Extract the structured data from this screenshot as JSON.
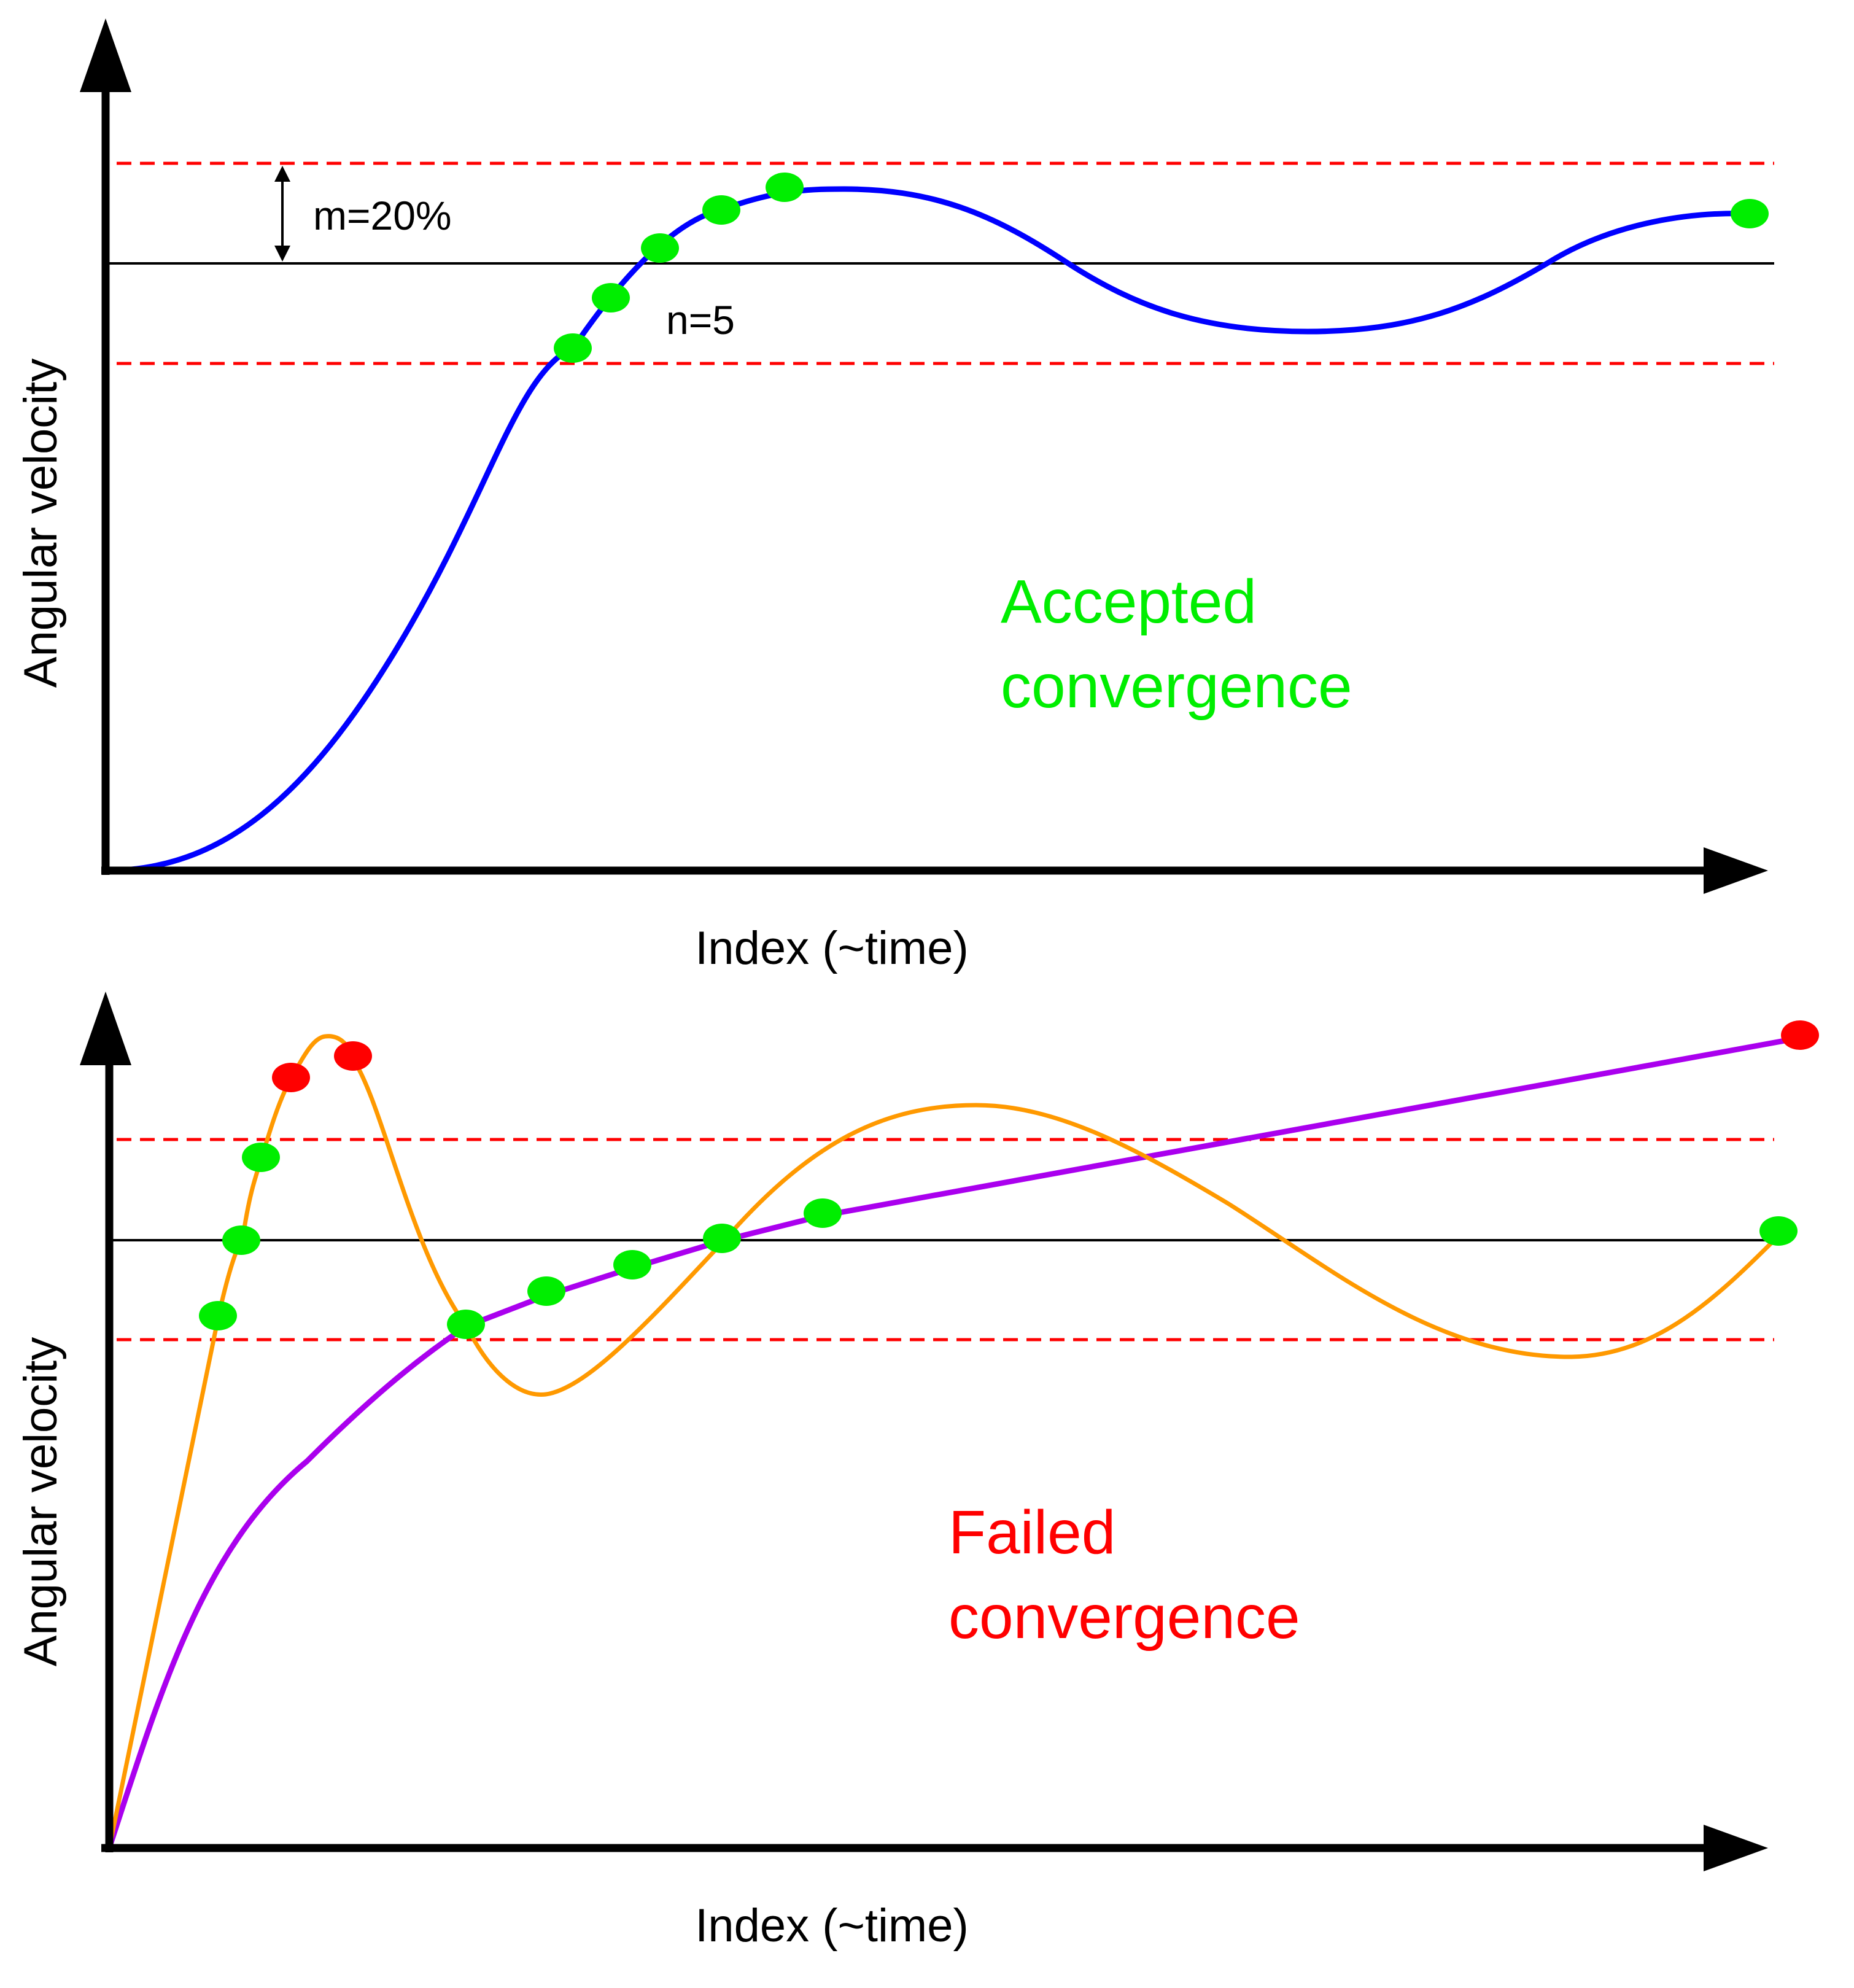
{
  "colors": {
    "axis": "#000000",
    "reference_line": "#000000",
    "tolerance_band": "#ff0000",
    "accepted_curve": "#0000ff",
    "oscillating_curve": "#ff9900",
    "slow_curve": "#aa00ee",
    "within_tolerance_point": "#00ee00",
    "outside_tolerance_point": "#ff0000",
    "accepted_text": "#00ee00",
    "failed_text": "#ff0000"
  },
  "top_panel": {
    "y_axis_label": "Angular velocity",
    "x_axis_label": "Index (~time)",
    "margin_label": "m=20%",
    "count_label": "n=5",
    "status_line1": "Accepted",
    "status_line2": "convergence"
  },
  "bottom_panel": {
    "y_axis_label": "Angular velocity",
    "x_axis_label": "Index (~time)",
    "status_line1": "Failed",
    "status_line2": "convergence"
  }
}
